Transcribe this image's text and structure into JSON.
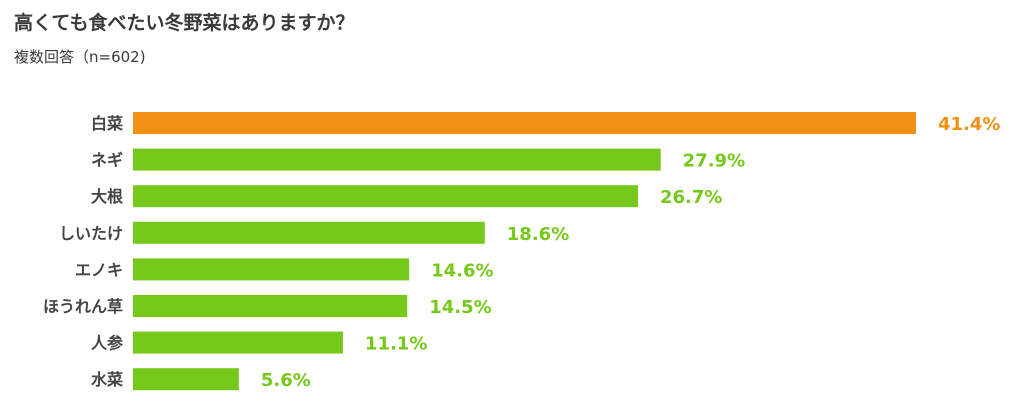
{
  "title": "高くても食べたい冬野菜はありますか？",
  "subtitle": "複数回答（n=602)",
  "colors": {
    "highlight": "#F29015",
    "bar": "#76C91A"
  },
  "chart_data": {
    "type": "bar",
    "orientation": "horizontal",
    "categories": [
      "白菜",
      "ネギ",
      "大根",
      "しいたけ",
      "エノキ",
      "ほうれん草",
      "人参",
      "水菜"
    ],
    "values": [
      41.4,
      27.9,
      26.7,
      18.6,
      14.6,
      14.5,
      11.1,
      5.6
    ],
    "value_labels": [
      "41.4%",
      "27.9%",
      "26.7%",
      "18.6%",
      "14.6%",
      "14.5%",
      "11.1%",
      "5.6%"
    ],
    "highlight_index": 0,
    "xlim": [
      0,
      41.4
    ],
    "grid": false,
    "legend": false
  }
}
